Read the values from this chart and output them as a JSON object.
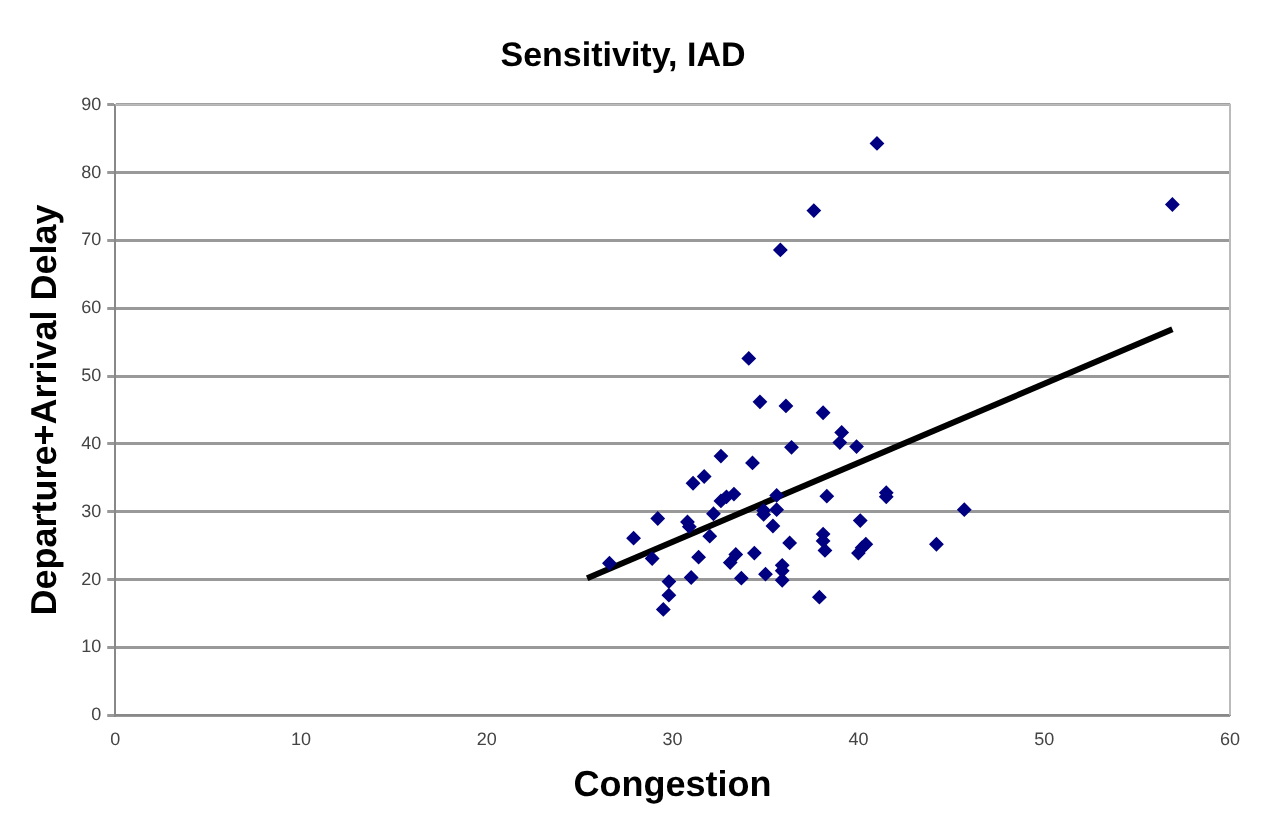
{
  "chart_data": {
    "type": "scatter",
    "title": "Sensitivity, IAD",
    "xlabel": "Congestion",
    "ylabel": "Departure+Arrival Delay",
    "xlim": [
      0,
      60
    ],
    "xticks": [
      0,
      10,
      20,
      30,
      40,
      50,
      60
    ],
    "ylim": [
      0,
      90
    ],
    "yticks": [
      0,
      10,
      20,
      30,
      40,
      50,
      60,
      70,
      80,
      90
    ],
    "grid": "y",
    "legend": false,
    "series": [
      {
        "type": "scatter",
        "color": "#000080",
        "marker": "diamond",
        "x": [
          37.6,
          35.8,
          34.1,
          34.7,
          36.1,
          38.1,
          39.1,
          39.0,
          39.9,
          36.4,
          32.6,
          34.3,
          31.1,
          31.7,
          33.3,
          32.9,
          32.6,
          35.6,
          38.3,
          41.5,
          41.5,
          32.2,
          34.9,
          34.9,
          35.6,
          29.2,
          30.8,
          30.9,
          35.4,
          40.1,
          27.9,
          32.0,
          36.3,
          38.1,
          38.1,
          38.2,
          40.4,
          40.2,
          40.0,
          44.2,
          26.6,
          28.9,
          31.4,
          33.4,
          33.1,
          34.4,
          35.9,
          35.9,
          35.9,
          31.0,
          33.7,
          35.0,
          29.8,
          29.8,
          29.5,
          37.9,
          41.0,
          56.9,
          45.7
        ],
        "values": [
          74.4,
          68.6,
          52.6,
          46.2,
          45.6,
          44.6,
          41.7,
          40.2,
          39.6,
          39.5,
          38.2,
          37.2,
          34.2,
          35.2,
          32.6,
          32.2,
          31.6,
          32.4,
          32.3,
          32.8,
          32.2,
          29.7,
          30.2,
          29.6,
          30.3,
          29.0,
          28.5,
          27.8,
          27.9,
          28.7,
          26.1,
          26.4,
          25.4,
          26.7,
          25.7,
          24.3,
          25.2,
          24.7,
          23.9,
          25.2,
          22.4,
          23.1,
          23.3,
          23.7,
          22.5,
          23.9,
          22.1,
          21.3,
          19.9,
          20.3,
          20.2,
          20.8,
          19.7,
          17.7,
          15.6,
          17.4,
          84.3,
          75.3,
          30.3
        ]
      },
      {
        "type": "line",
        "color": "#000000",
        "marker": "none",
        "line_style": "solid",
        "x": [
          25.4,
          56.9
        ],
        "values": [
          20.2,
          56.9
        ]
      }
    ]
  }
}
